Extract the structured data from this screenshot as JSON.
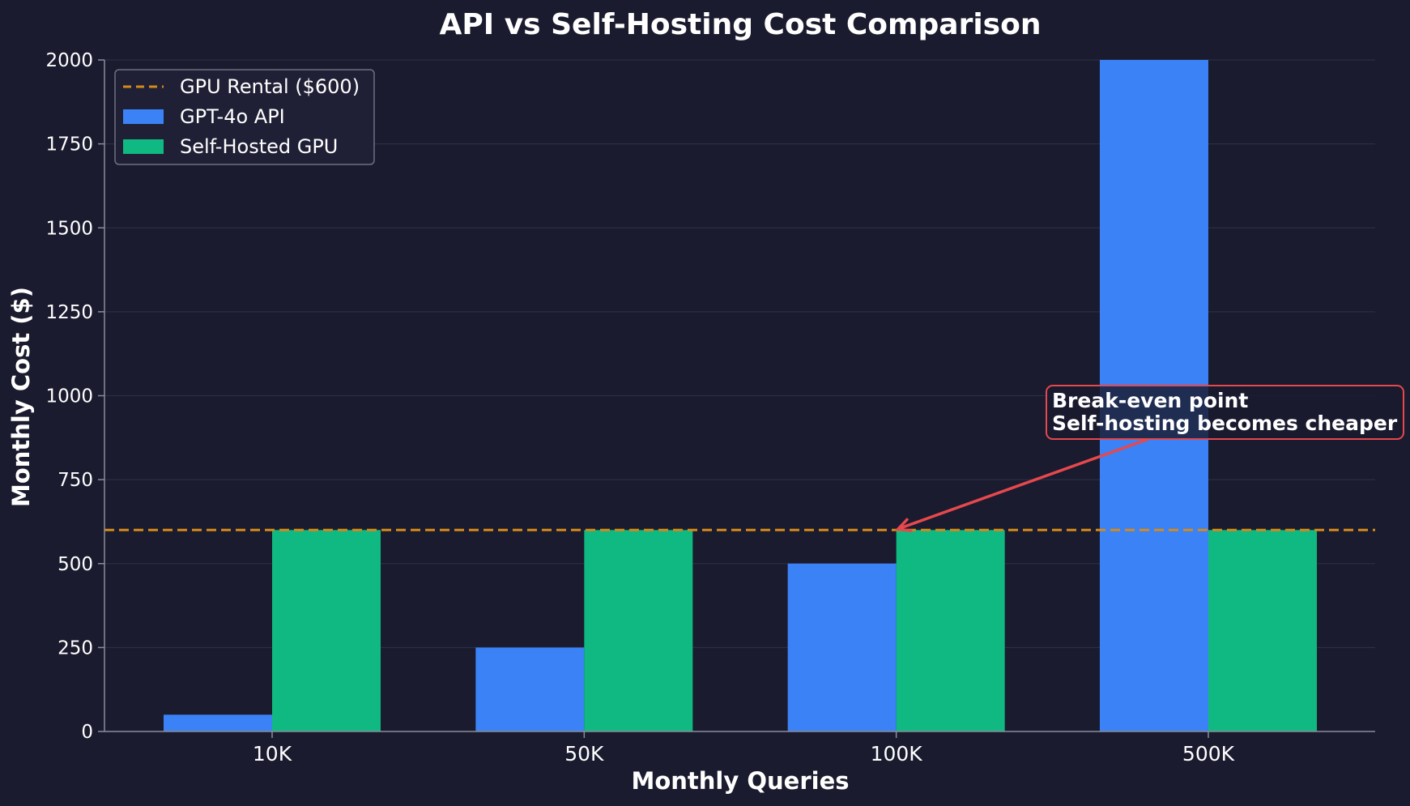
{
  "chart_data": {
    "type": "bar",
    "title": "API vs Self-Hosting Cost Comparison",
    "xlabel": "Monthly Queries",
    "ylabel": "Monthly Cost ($)",
    "categories": [
      "10K",
      "50K",
      "100K",
      "500K"
    ],
    "series": [
      {
        "name": "GPT-4o API",
        "values": [
          50,
          250,
          500,
          2000
        ],
        "color": "#3b82f6"
      },
      {
        "name": "Self-Hosted GPU",
        "values": [
          600,
          600,
          600,
          600
        ],
        "color": "#10b981"
      }
    ],
    "reference_line": {
      "name": "GPU Rental ($600)",
      "value": 600,
      "color": "#d48a1a",
      "style": "dashed"
    },
    "ylim": [
      0,
      2000
    ],
    "yticks": [
      0,
      250,
      500,
      750,
      1000,
      1250,
      1500,
      1750,
      2000
    ],
    "grid": true,
    "legend_position": "top-left",
    "annotation": {
      "lines": [
        "Break-even point",
        "Self-hosting becomes cheaper"
      ],
      "target_category": "100K",
      "target_value": 600,
      "color": "#e5484d"
    },
    "colors": {
      "background": "#1a1b2e",
      "grid": "#2b2d44",
      "axis": "#8a8c99",
      "text": "#ffffff"
    }
  }
}
